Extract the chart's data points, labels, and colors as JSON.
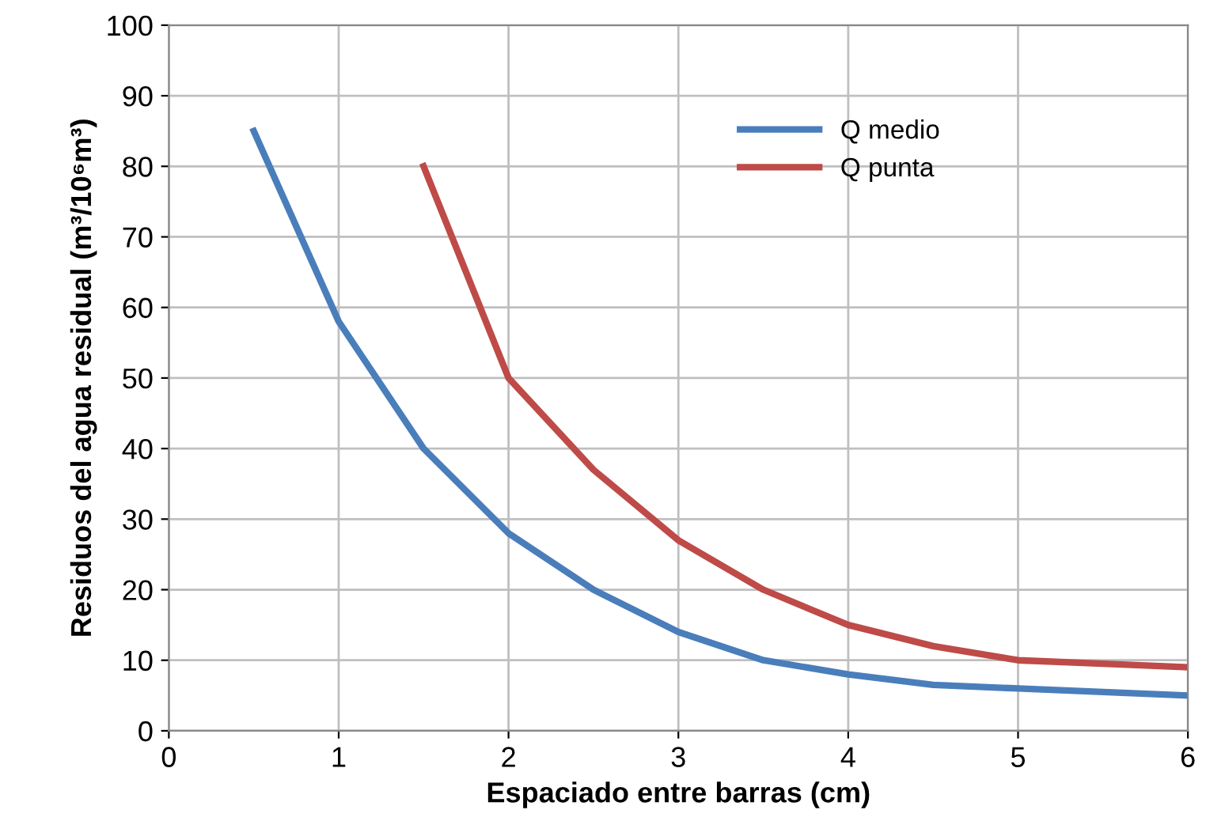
{
  "chart_data": {
    "type": "line",
    "xlabel": "Espaciado entre barras (cm)",
    "ylabel": "Residuos del agua residual (m³/10⁶m³)",
    "xlim": [
      0,
      6
    ],
    "xticks": [
      0,
      1,
      2,
      3,
      4,
      5,
      6
    ],
    "ylim": [
      0,
      100
    ],
    "yticks": [
      0,
      10,
      20,
      30,
      40,
      50,
      60,
      70,
      80,
      90,
      100
    ],
    "grid": true,
    "legend": "top right",
    "marker": "none",
    "line_style": "solid",
    "series": [
      {
        "name": "Q medio",
        "color": "#4a7ebb",
        "x": [
          0.5,
          1,
          1.5,
          2,
          2.5,
          3,
          3.5,
          4,
          4.5,
          5,
          5.5,
          6
        ],
        "values": [
          85,
          58,
          40,
          28,
          20,
          14,
          10,
          8,
          6.5,
          6,
          5.5,
          5
        ]
      },
      {
        "name": "Q punta",
        "color": "#be4b48",
        "x": [
          1.5,
          2,
          2.5,
          3,
          3.5,
          4,
          4.5,
          5,
          5.5,
          6
        ],
        "values": [
          80,
          50,
          37,
          27,
          20,
          15,
          12,
          10,
          9.5,
          9
        ]
      }
    ]
  }
}
